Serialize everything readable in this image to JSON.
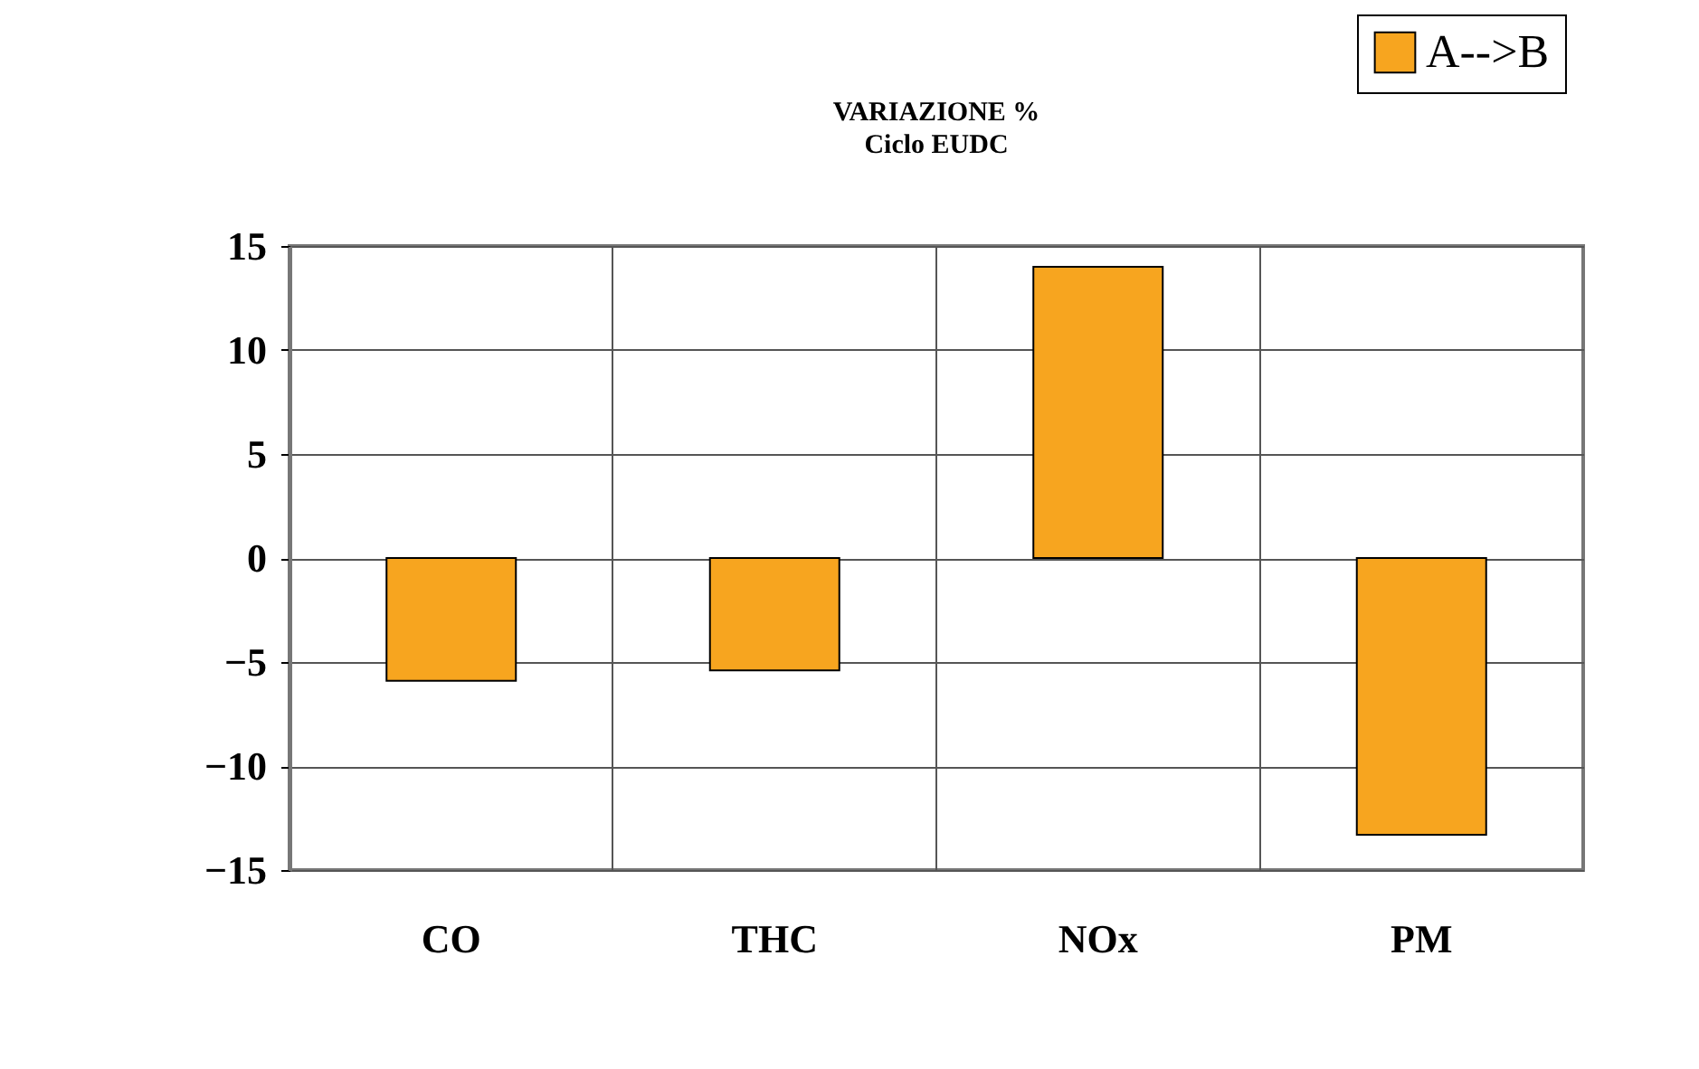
{
  "chart_data": {
    "type": "bar",
    "title": "VARIAZIONE %",
    "subtitle": "Ciclo EUDC",
    "categories": [
      "CO",
      "THC",
      "NOx",
      "PM"
    ],
    "series": [
      {
        "name": "A-->B",
        "color": "#f7a51f",
        "values": [
          -5.9,
          -5.4,
          14,
          -13.3
        ]
      }
    ],
    "ylim": [
      -15,
      15
    ],
    "yticks": [
      -15,
      -10,
      -5,
      0,
      5,
      10,
      15
    ],
    "grid": true,
    "legend": "top right"
  }
}
